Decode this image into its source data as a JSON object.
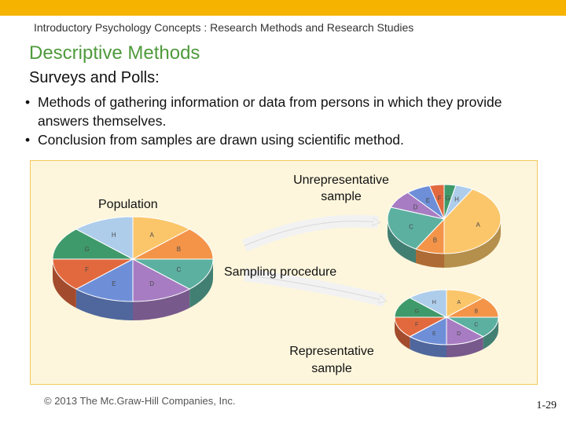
{
  "header": {
    "subject": "Introductory Psychology Concepts : Research Methods and Research Studies"
  },
  "title": "Descriptive Methods",
  "subtitle": "Surveys and Polls:",
  "bullets": [
    "Methods of gathering information or data from persons in which they provide answers themselves.",
    "Conclusion from samples are drawn using scientific method."
  ],
  "figure": {
    "population_label": "Population",
    "unrepresentative_label": "Unrepresentative sample",
    "sampling_label": "Sampling procedure",
    "representative_label": "Representative sample",
    "slice_letters": [
      "A",
      "B",
      "C",
      "D",
      "E",
      "F",
      "G",
      "H"
    ],
    "colors": {
      "A": "#fbc66a",
      "B": "#f39449",
      "C": "#5cb0a0",
      "D": "#a77cc2",
      "E": "#6e8fd8",
      "F": "#e2693e",
      "G": "#3f9a6b",
      "H": "#aecdeb"
    }
  },
  "footer": {
    "copyright": "© 2013 The Mc.Graw-Hill Companies, Inc.",
    "page": "1-29"
  }
}
